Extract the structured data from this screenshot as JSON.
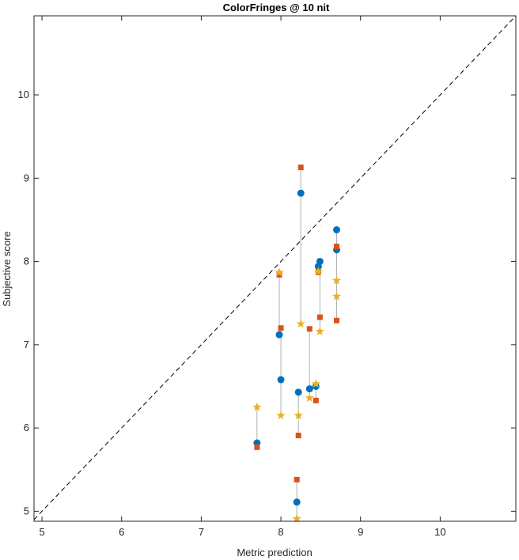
{
  "chart_data": {
    "type": "scatter",
    "title": "ColorFringes @ 10 nit",
    "xlabel": "Metric prediction",
    "ylabel": "Subjective score",
    "xlim": [
      4.9,
      10.95
    ],
    "ylim": [
      4.88,
      10.95
    ],
    "xticks": [
      5,
      6,
      7,
      8,
      9,
      10
    ],
    "yticks": [
      5,
      6,
      7,
      8,
      9,
      10
    ],
    "grid": false,
    "reference_line": {
      "from": [
        4.9,
        4.9
      ],
      "to": [
        10.95,
        10.95
      ],
      "style": "dashed",
      "color": "#000000"
    },
    "connector_color": "#b0b0b0",
    "series": [
      {
        "marker": "circle",
        "color": "#0072BD",
        "points": [
          [
            7.7,
            5.82
          ],
          [
            7.98,
            7.12
          ],
          [
            8.0,
            6.58
          ],
          [
            8.2,
            5.11
          ],
          [
            8.22,
            6.43
          ],
          [
            8.25,
            8.82
          ],
          [
            8.36,
            6.47
          ],
          [
            8.44,
            6.5
          ],
          [
            8.47,
            7.94
          ],
          [
            8.49,
            8.0
          ],
          [
            8.7,
            8.14
          ],
          [
            8.7,
            8.38
          ]
        ]
      },
      {
        "marker": "square",
        "color": "#D95319",
        "points": [
          [
            7.7,
            5.77
          ],
          [
            7.98,
            7.84
          ],
          [
            8.0,
            7.2
          ],
          [
            8.2,
            5.38
          ],
          [
            8.22,
            5.91
          ],
          [
            8.25,
            9.13
          ],
          [
            8.36,
            7.19
          ],
          [
            8.44,
            6.33
          ],
          [
            8.47,
            7.87
          ],
          [
            8.49,
            7.33
          ],
          [
            8.7,
            7.29
          ],
          [
            8.7,
            8.18
          ]
        ]
      },
      {
        "marker": "star",
        "color": "#EDB120",
        "points": [
          [
            7.7,
            6.25
          ],
          [
            7.98,
            7.87
          ],
          [
            8.0,
            6.15
          ],
          [
            8.2,
            4.91
          ],
          [
            8.22,
            6.15
          ],
          [
            8.25,
            7.25
          ],
          [
            8.36,
            6.36
          ],
          [
            8.44,
            6.53
          ],
          [
            8.47,
            7.88
          ],
          [
            8.49,
            7.16
          ],
          [
            8.7,
            7.58
          ],
          [
            8.7,
            7.77
          ]
        ]
      }
    ]
  }
}
